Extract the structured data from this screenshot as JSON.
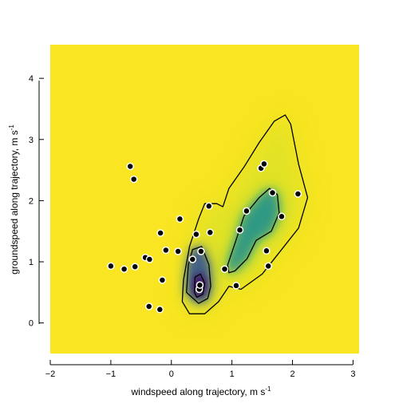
{
  "chart_data": {
    "type": "contour_density_scatter",
    "xlabel": "windspeed along trajectory, m s",
    "xlabel_superscript": "-1",
    "ylabel": "groundspeed along trajectory, m s",
    "ylabel_superscript": "-1",
    "xlim": [
      -2,
      3.1
    ],
    "ylim": [
      -0.5,
      4.55
    ],
    "xticks": [
      -2,
      -1,
      0,
      1,
      2,
      3
    ],
    "xtick_labels": [
      "−2",
      "−1",
      "0",
      "1",
      "2",
      "3"
    ],
    "yticks": [
      0,
      1,
      2,
      3,
      4
    ],
    "ytick_labels": [
      "0",
      "1",
      "2",
      "3",
      "4"
    ],
    "grid": false,
    "colormap": "viridis_r",
    "background_color": "#f9e521",
    "density_peak": {
      "x": 0.48,
      "y": 0.62
    },
    "points": [
      {
        "x": -0.68,
        "y": 2.56
      },
      {
        "x": -0.62,
        "y": 2.35
      },
      {
        "x": -1.0,
        "y": 0.93
      },
      {
        "x": -0.78,
        "y": 0.88
      },
      {
        "x": -0.6,
        "y": 0.92
      },
      {
        "x": -0.43,
        "y": 1.07
      },
      {
        "x": -0.36,
        "y": 1.04
      },
      {
        "x": -0.37,
        "y": 0.27
      },
      {
        "x": -0.19,
        "y": 0.22
      },
      {
        "x": -0.15,
        "y": 0.7
      },
      {
        "x": -0.18,
        "y": 1.47
      },
      {
        "x": -0.09,
        "y": 1.19
      },
      {
        "x": 0.11,
        "y": 1.17
      },
      {
        "x": 0.14,
        "y": 1.7
      },
      {
        "x": 0.35,
        "y": 1.04
      },
      {
        "x": 0.41,
        "y": 1.45
      },
      {
        "x": 0.46,
        "y": 0.55
      },
      {
        "x": 0.47,
        "y": 0.62
      },
      {
        "x": 0.49,
        "y": 1.17
      },
      {
        "x": 0.62,
        "y": 1.91
      },
      {
        "x": 0.64,
        "y": 1.48
      },
      {
        "x": 0.88,
        "y": 0.88
      },
      {
        "x": 1.07,
        "y": 0.61
      },
      {
        "x": 1.13,
        "y": 1.52
      },
      {
        "x": 1.24,
        "y": 1.83
      },
      {
        "x": 1.48,
        "y": 2.53
      },
      {
        "x": 1.53,
        "y": 2.6
      },
      {
        "x": 1.57,
        "y": 1.18
      },
      {
        "x": 1.6,
        "y": 0.93
      },
      {
        "x": 1.67,
        "y": 2.13
      },
      {
        "x": 1.82,
        "y": 1.74
      },
      {
        "x": 2.09,
        "y": 2.11
      }
    ],
    "contours": [
      [
        [
          0.18,
          0.35
        ],
        [
          0.2,
          0.7
        ],
        [
          0.3,
          1.25
        ],
        [
          0.45,
          1.7
        ],
        [
          0.55,
          1.95
        ],
        [
          0.75,
          1.95
        ],
        [
          0.85,
          1.9
        ],
        [
          0.95,
          2.2
        ],
        [
          1.2,
          2.55
        ],
        [
          1.45,
          2.95
        ],
        [
          1.7,
          3.3
        ],
        [
          1.88,
          3.4
        ],
        [
          1.97,
          3.25
        ],
        [
          2.1,
          2.6
        ],
        [
          2.25,
          2.05
        ],
        [
          2.1,
          1.55
        ],
        [
          1.7,
          1.05
        ],
        [
          1.5,
          0.8
        ],
        [
          1.15,
          0.55
        ],
        [
          0.95,
          0.6
        ],
        [
          0.78,
          0.35
        ],
        [
          0.55,
          0.15
        ],
        [
          0.3,
          0.15
        ],
        [
          0.18,
          0.35
        ]
      ],
      [
        [
          0.25,
          0.5
        ],
        [
          0.28,
          0.95
        ],
        [
          0.35,
          1.2
        ],
        [
          0.5,
          1.25
        ],
        [
          0.62,
          0.95
        ],
        [
          0.65,
          0.6
        ],
        [
          0.6,
          0.4
        ],
        [
          0.45,
          0.32
        ],
        [
          0.25,
          0.5
        ]
      ],
      [
        [
          0.93,
          0.95
        ],
        [
          1.05,
          1.3
        ],
        [
          1.2,
          1.75
        ],
        [
          1.45,
          2.05
        ],
        [
          1.62,
          2.2
        ],
        [
          1.75,
          2.1
        ],
        [
          1.78,
          1.8
        ],
        [
          1.65,
          1.5
        ],
        [
          1.4,
          1.35
        ],
        [
          1.25,
          1.05
        ],
        [
          1.05,
          0.85
        ],
        [
          0.95,
          0.82
        ],
        [
          0.93,
          0.95
        ]
      ],
      [
        [
          0.38,
          0.5
        ],
        [
          0.39,
          0.75
        ],
        [
          0.48,
          0.8
        ],
        [
          0.55,
          0.65
        ],
        [
          0.52,
          0.47
        ],
        [
          0.42,
          0.42
        ],
        [
          0.38,
          0.5
        ]
      ]
    ]
  }
}
